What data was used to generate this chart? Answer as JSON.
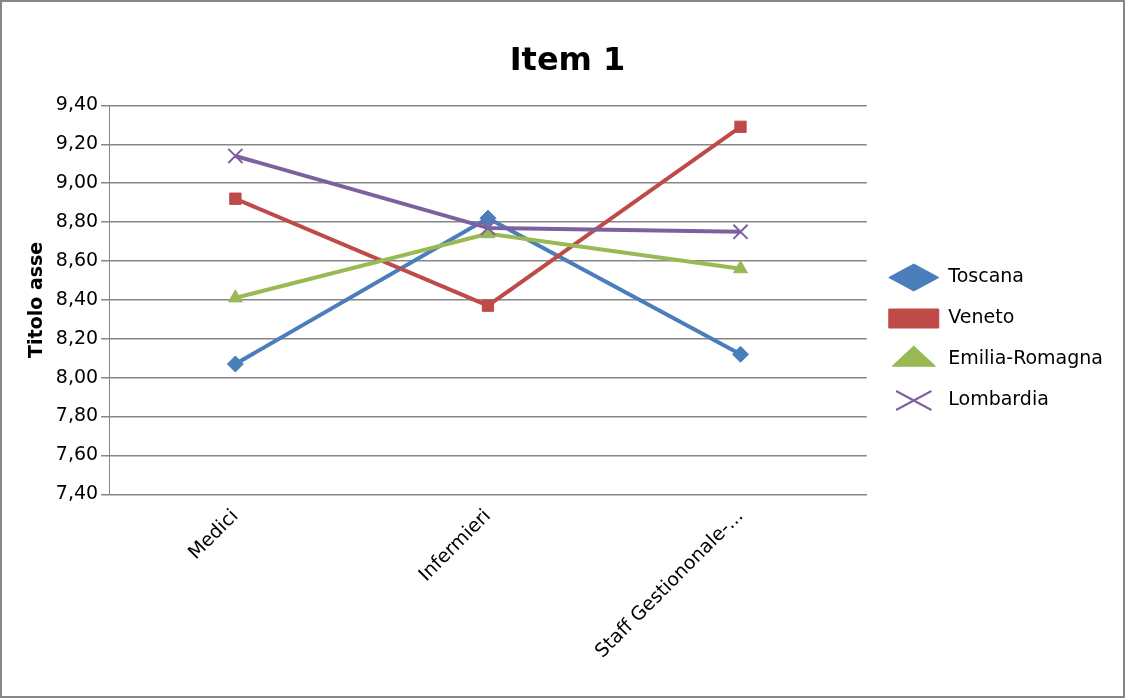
{
  "chart_data": {
    "type": "line",
    "title": "Item 1",
    "ylabel": "Titolo asse",
    "categories": [
      "Medici",
      "Infermieri",
      "Staff Gestiononale-..."
    ],
    "series": [
      {
        "name": "Toscana",
        "color": "#4a7ebb",
        "marker": "diamond",
        "values": [
          8.07,
          8.82,
          8.12
        ]
      },
      {
        "name": "Veneto",
        "color": "#be4b48",
        "marker": "square",
        "values": [
          8.92,
          8.37,
          9.29
        ]
      },
      {
        "name": "Emilia-Romagna",
        "color": "#98b954",
        "marker": "triangle",
        "values": [
          8.41,
          8.74,
          8.56
        ]
      },
      {
        "name": "Lombardia",
        "color": "#7d60a0",
        "marker": "cross",
        "values": [
          9.14,
          8.77,
          8.75
        ]
      }
    ],
    "ylim": [
      7.4,
      9.4
    ],
    "yticks": [
      {
        "value": 7.4,
        "label": "7,40"
      },
      {
        "value": 7.6,
        "label": "7,60"
      },
      {
        "value": 7.8,
        "label": "7,80"
      },
      {
        "value": 8.0,
        "label": "8,00"
      },
      {
        "value": 8.2,
        "label": "8,20"
      },
      {
        "value": 8.4,
        "label": "8,40"
      },
      {
        "value": 8.6,
        "label": "8,60"
      },
      {
        "value": 8.8,
        "label": "8,80"
      },
      {
        "value": 9.0,
        "label": "9,00"
      },
      {
        "value": 9.2,
        "label": "9,20"
      },
      {
        "value": 9.4,
        "label": "9,40"
      }
    ],
    "grid": "y",
    "legend": "right",
    "line_style": "solid"
  }
}
